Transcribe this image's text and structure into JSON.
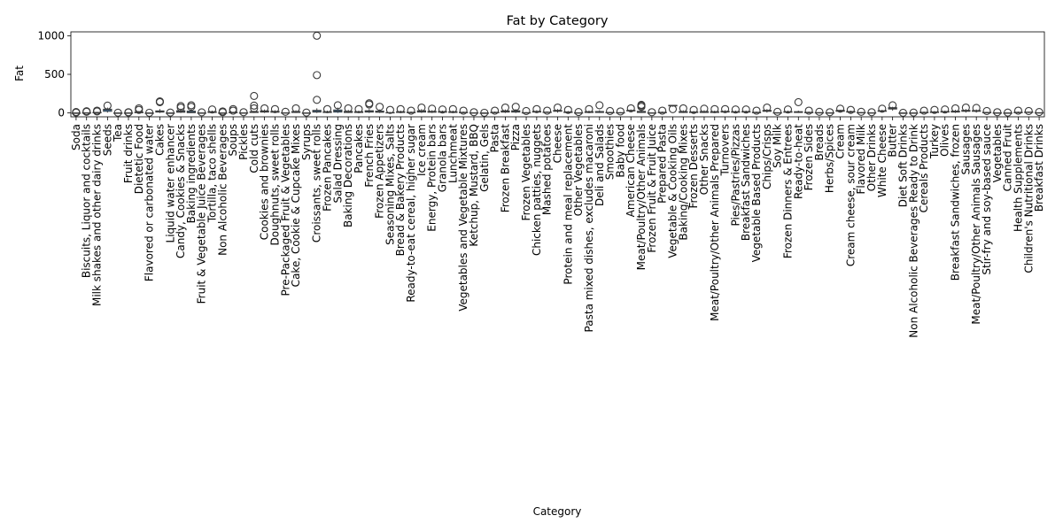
{
  "chart_data": {
    "type": "box",
    "title": "Fat by Category",
    "xlabel": "Category",
    "ylabel": "Fat",
    "ylim": [
      -50,
      1050
    ],
    "yticks": [
      0,
      500,
      1000
    ],
    "grid": false,
    "legend": "none",
    "colors": {
      "box_fill": "#3d7bb0",
      "stroke": "#3a3a3a",
      "outlier_edge": "#3a3a3a"
    },
    "categories": [
      "Soda",
      "Biscuits, Liquor and cocktails",
      "Milk shakes and other dairy drinks",
      "Seeds",
      "Tea",
      "Fruit drinks",
      "Dietetic Food",
      "Flavored or carbonated water",
      "Cakes",
      "Liquid water enhancer",
      "Candy, Cookies & Snacks",
      "Baking ingredients",
      "Fruit & Vegetable Juice Beverages",
      "Tortilla, taco shells",
      "Non Alcoholic Beverages",
      "Soups",
      "Pickles",
      "Cold cuts",
      "Cookies and brownies",
      "Doughnuts, sweet rolls",
      "Pre-Packaged Fruit & Vegetables",
      "Cake, Cookie & Cupcake Mixes",
      "Syrups",
      "Croissants, sweet rolls",
      "Frozen Pancakes",
      "Salad Dressing",
      "Baking Decorations",
      "Pancakes",
      "French Fries",
      "Frozen Appetizers",
      "Seasoning Mixes, Salts",
      "Bread & Bakery Products",
      "Ready-to-eat cereal, higher sugar",
      "Ice cream",
      "Energy, Protein bars",
      "Granola bars",
      "Lunchmeat",
      "Vegetables and Vegetable Mixtures",
      "Ketchup, Mustard, BBQ",
      "Gelatin, Gels",
      "Pasta",
      "Frozen Breakfast",
      "Pizza",
      "Frozen Vegetables",
      "Chicken patties, nuggets",
      "Mashed potatoes",
      "Cheese",
      "Protein and meal replacement",
      "Other Vegetables",
      "Pasta mixed dishes, excludes macaroni",
      "Deli and Salads",
      "Smoothies",
      "Baby food",
      "American Cheese",
      "Meat/Poultry/Other Animals",
      "Frozen Fruit & Fruit Juice",
      "Prepared Pasta",
      "Vegetable & Cooking Oils",
      "Baking/Cooking Mixes",
      "Frozen Desserts",
      "Other Snacks",
      "Meat/Poultry/Other Animals Prepared",
      "Turnovers",
      "Pies/Pastries/Pizzas",
      "Breakfast Sandwiches",
      "Vegetable Based Products",
      "Chips/Crisps",
      "Soy Milk",
      "Frozen Dinners & Entrees",
      "Ready-to-heat",
      "Frozen Sides",
      "Breads",
      "Herbs/Spices",
      "Cream",
      "Cream cheese, sour cream",
      "Flavored Milk",
      "Other Drinks",
      "White Cheese",
      "Butter",
      "Diet Soft Drinks",
      "Non Alcoholic Beverages Ready to Drink",
      "Cereals Products",
      "Turkey",
      "Olives",
      "Breakfast Sandwiches, frozen",
      "Sausages",
      "Meat/Poultry/Other Animals Sausages",
      "Stir-fry and soy-based sauce",
      "Vegetables",
      "Canned Fruit",
      "Health Supplements",
      "Children's Nutritional Drinks",
      "Breakfast Drinks"
    ],
    "boxes": [
      {
        "q1": 0,
        "median": 0,
        "q3": 0,
        "whisker_low": 0,
        "whisker_high": 2,
        "outliers": [
          5,
          8,
          12
        ]
      },
      {
        "q1": 0,
        "median": 1,
        "q3": 3,
        "whisker_low": 0,
        "whisker_high": 6,
        "outliers": [
          15,
          22
        ]
      },
      {
        "q1": 2,
        "median": 4,
        "q3": 8,
        "whisker_low": 0,
        "whisker_high": 14,
        "outliers": [
          20,
          30
        ]
      },
      {
        "q1": 20,
        "median": 40,
        "q3": 50,
        "whisker_low": 5,
        "whisker_high": 70,
        "outliers": [
          95
        ]
      },
      {
        "q1": 0,
        "median": 0,
        "q3": 0,
        "whisker_low": 0,
        "whisker_high": 1,
        "outliers": [
          4
        ]
      },
      {
        "q1": 0,
        "median": 0,
        "q3": 1,
        "whisker_low": 0,
        "whisker_high": 2,
        "outliers": [
          6,
          10
        ]
      },
      {
        "q1": 2,
        "median": 6,
        "q3": 12,
        "whisker_low": 0,
        "whisker_high": 25,
        "outliers": [
          40,
          60
        ]
      },
      {
        "q1": 0,
        "median": 0,
        "q3": 0,
        "whisker_low": 0,
        "whisker_high": 0,
        "outliers": [
          3
        ]
      },
      {
        "q1": 10,
        "median": 18,
        "q3": 28,
        "whisker_low": 0,
        "whisker_high": 50,
        "outliers": [
          145,
          150,
          140
        ]
      },
      {
        "q1": 0,
        "median": 0,
        "q3": 0,
        "whisker_low": 0,
        "whisker_high": 1,
        "outliers": [
          5
        ]
      },
      {
        "q1": 8,
        "median": 18,
        "q3": 30,
        "whisker_low": 0,
        "whisker_high": 55,
        "outliers": [
          70,
          90
        ]
      },
      {
        "q1": 2,
        "median": 10,
        "q3": 25,
        "whisker_low": 0,
        "whisker_high": 50,
        "outliers": [
          80,
          100
        ]
      },
      {
        "q1": 0,
        "median": 0,
        "q3": 1,
        "whisker_low": 0,
        "whisker_high": 3,
        "outliers": [
          8
        ]
      },
      {
        "q1": 5,
        "median": 10,
        "q3": 18,
        "whisker_low": 0,
        "whisker_high": 30,
        "outliers": [
          45
        ]
      },
      {
        "q1": 0,
        "median": 0,
        "q3": 1,
        "whisker_low": 0,
        "whisker_high": 2,
        "outliers": [
          10,
          20
        ]
      },
      {
        "q1": 2,
        "median": 4,
        "q3": 8,
        "whisker_low": 0,
        "whisker_high": 15,
        "outliers": [
          30,
          50
        ]
      },
      {
        "q1": 0,
        "median": 1,
        "q3": 2,
        "whisker_low": 0,
        "whisker_high": 4,
        "outliers": [
          10
        ]
      },
      {
        "q1": 5,
        "median": 10,
        "q3": 18,
        "whisker_low": 0,
        "whisker_high": 30,
        "outliers": [
          60,
          95,
          220
        ]
      },
      {
        "q1": 10,
        "median": 18,
        "q3": 28,
        "whisker_low": 0,
        "whisker_high": 45,
        "outliers": [
          60
        ]
      },
      {
        "q1": 8,
        "median": 15,
        "q3": 22,
        "whisker_low": 0,
        "whisker_high": 35,
        "outliers": [
          50
        ]
      },
      {
        "q1": 0,
        "median": 1,
        "q3": 3,
        "whisker_low": 0,
        "whisker_high": 6,
        "outliers": [
          15
        ]
      },
      {
        "q1": 5,
        "median": 10,
        "q3": 20,
        "whisker_low": 0,
        "whisker_high": 35,
        "outliers": [
          60
        ]
      },
      {
        "q1": 0,
        "median": 0,
        "q3": 1,
        "whisker_low": 0,
        "whisker_high": 2,
        "outliers": [
          5
        ]
      },
      {
        "q1": 10,
        "median": 20,
        "q3": 35,
        "whisker_low": 0,
        "whisker_high": 60,
        "outliers": [
          170,
          490,
          1000
        ]
      },
      {
        "q1": 5,
        "median": 10,
        "q3": 18,
        "whisker_low": 0,
        "whisker_high": 30,
        "outliers": [
          50
        ]
      },
      {
        "q1": 10,
        "median": 25,
        "q3": 40,
        "whisker_low": 0,
        "whisker_high": 70,
        "outliers": [
          100
        ]
      },
      {
        "q1": 5,
        "median": 12,
        "q3": 22,
        "whisker_low": 0,
        "whisker_high": 40,
        "outliers": [
          60
        ]
      },
      {
        "q1": 5,
        "median": 10,
        "q3": 18,
        "whisker_low": 0,
        "whisker_high": 30,
        "outliers": [
          50
        ]
      },
      {
        "q1": 10,
        "median": 20,
        "q3": 30,
        "whisker_low": 0,
        "whisker_high": 50,
        "outliers": [
          110,
          125
        ]
      },
      {
        "q1": 8,
        "median": 15,
        "q3": 25,
        "whisker_low": 0,
        "whisker_high": 45,
        "outliers": [
          80
        ]
      },
      {
        "q1": 0,
        "median": 2,
        "q3": 6,
        "whisker_low": 0,
        "whisker_high": 12,
        "outliers": [
          40
        ]
      },
      {
        "q1": 5,
        "median": 10,
        "q3": 18,
        "whisker_low": 0,
        "whisker_high": 30,
        "outliers": [
          50
        ]
      },
      {
        "q1": 2,
        "median": 5,
        "q3": 10,
        "whisker_low": 0,
        "whisker_high": 18,
        "outliers": [
          30
        ]
      },
      {
        "q1": 10,
        "median": 20,
        "q3": 30,
        "whisker_low": 0,
        "whisker_high": 50,
        "outliers": [
          70
        ]
      },
      {
        "q1": 8,
        "median": 14,
        "q3": 22,
        "whisker_low": 0,
        "whisker_high": 35,
        "outliers": [
          55
        ]
      },
      {
        "q1": 8,
        "median": 14,
        "q3": 20,
        "whisker_low": 0,
        "whisker_high": 30,
        "outliers": [
          45
        ]
      },
      {
        "q1": 5,
        "median": 10,
        "q3": 18,
        "whisker_low": 0,
        "whisker_high": 30,
        "outliers": [
          50
        ]
      },
      {
        "q1": 2,
        "median": 5,
        "q3": 10,
        "whisker_low": 0,
        "whisker_high": 18,
        "outliers": [
          30
        ]
      },
      {
        "q1": 0,
        "median": 1,
        "q3": 3,
        "whisker_low": 0,
        "whisker_high": 5,
        "outliers": [
          10
        ]
      },
      {
        "q1": 0,
        "median": 0,
        "q3": 0,
        "whisker_low": 0,
        "whisker_high": 1,
        "outliers": [
          3
        ]
      },
      {
        "q1": 2,
        "median": 5,
        "q3": 10,
        "whisker_low": 0,
        "whisker_high": 18,
        "outliers": [
          30
        ]
      },
      {
        "q1": 10,
        "median": 18,
        "q3": 28,
        "whisker_low": 0,
        "whisker_high": 45,
        "outliers": [
          70
        ]
      },
      {
        "q1": 10,
        "median": 20,
        "q3": 30,
        "whisker_low": 0,
        "whisker_high": 50,
        "outliers": [
          80
        ]
      },
      {
        "q1": 0,
        "median": 2,
        "q3": 5,
        "whisker_low": 0,
        "whisker_high": 10,
        "outliers": [
          25
        ]
      },
      {
        "q1": 10,
        "median": 15,
        "q3": 22,
        "whisker_low": 0,
        "whisker_high": 35,
        "outliers": [
          50
        ]
      },
      {
        "q1": 5,
        "median": 8,
        "q3": 12,
        "whisker_low": 0,
        "whisker_high": 20,
        "outliers": [
          30
        ]
      },
      {
        "q1": 20,
        "median": 28,
        "q3": 35,
        "whisker_low": 5,
        "whisker_high": 50,
        "outliers": [
          70
        ]
      },
      {
        "q1": 5,
        "median": 10,
        "q3": 15,
        "whisker_low": 0,
        "whisker_high": 25,
        "outliers": [
          40
        ]
      },
      {
        "q1": 0,
        "median": 1,
        "q3": 3,
        "whisker_low": 0,
        "whisker_high": 5,
        "outliers": [
          12
        ]
      },
      {
        "q1": 5,
        "median": 10,
        "q3": 18,
        "whisker_low": 0,
        "whisker_high": 30,
        "outliers": [
          50
        ]
      },
      {
        "q1": 5,
        "median": 10,
        "q3": 20,
        "whisker_low": 0,
        "whisker_high": 35,
        "outliers": [
          100
        ]
      },
      {
        "q1": 2,
        "median": 4,
        "q3": 8,
        "whisker_low": 0,
        "whisker_high": 14,
        "outliers": [
          25
        ]
      },
      {
        "q1": 0,
        "median": 2,
        "q3": 5,
        "whisker_low": 0,
        "whisker_high": 10,
        "outliers": [
          20
        ]
      },
      {
        "q1": 25,
        "median": 30,
        "q3": 35,
        "whisker_low": 15,
        "whisker_high": 45,
        "outliers": [
          60
        ]
      },
      {
        "q1": 5,
        "median": 12,
        "q3": 22,
        "whisker_low": 0,
        "whisker_high": 40,
        "outliers": [
          80,
          95,
          105
        ]
      },
      {
        "q1": 0,
        "median": 1,
        "q3": 2,
        "whisker_low": 0,
        "whisker_high": 4,
        "outliers": [
          10
        ]
      },
      {
        "q1": 2,
        "median": 5,
        "q3": 10,
        "whisker_low": 0,
        "whisker_high": 18,
        "outliers": [
          30
        ]
      },
      {
        "q1": 90,
        "median": 95,
        "q3": 100,
        "whisker_low": 80,
        "whisker_high": 100,
        "outliers": [
          50
        ]
      },
      {
        "q1": 5,
        "median": 10,
        "q3": 20,
        "whisker_low": 0,
        "whisker_high": 35,
        "outliers": [
          60
        ]
      },
      {
        "q1": 5,
        "median": 10,
        "q3": 15,
        "whisker_low": 0,
        "whisker_high": 25,
        "outliers": [
          40
        ]
      },
      {
        "q1": 5,
        "median": 10,
        "q3": 20,
        "whisker_low": 0,
        "whisker_high": 35,
        "outliers": [
          55
        ]
      },
      {
        "q1": 5,
        "median": 10,
        "q3": 18,
        "whisker_low": 0,
        "whisker_high": 30,
        "outliers": [
          50
        ]
      },
      {
        "q1": 10,
        "median": 15,
        "q3": 22,
        "whisker_low": 0,
        "whisker_high": 35,
        "outliers": [
          50
        ]
      },
      {
        "q1": 8,
        "median": 12,
        "q3": 18,
        "whisker_low": 0,
        "whisker_high": 30,
        "outliers": [
          45
        ]
      },
      {
        "q1": 10,
        "median": 15,
        "q3": 20,
        "whisker_low": 0,
        "whisker_high": 30,
        "outliers": [
          45
        ]
      },
      {
        "q1": 2,
        "median": 5,
        "q3": 10,
        "whisker_low": 0,
        "whisker_high": 18,
        "outliers": [
          30
        ]
      },
      {
        "q1": 20,
        "median": 28,
        "q3": 35,
        "whisker_low": 5,
        "whisker_high": 50,
        "outliers": [
          70
        ]
      },
      {
        "q1": 0,
        "median": 2,
        "q3": 4,
        "whisker_low": 0,
        "whisker_high": 8,
        "outliers": [
          15
        ]
      },
      {
        "q1": 8,
        "median": 12,
        "q3": 18,
        "whisker_low": 0,
        "whisker_high": 30,
        "outliers": [
          45
        ]
      },
      {
        "q1": 5,
        "median": 10,
        "q3": 18,
        "whisker_low": 0,
        "whisker_high": 30,
        "outliers": [
          140
        ]
      },
      {
        "q1": 2,
        "median": 5,
        "q3": 10,
        "whisker_low": 0,
        "whisker_high": 18,
        "outliers": [
          30
        ]
      },
      {
        "q1": 1,
        "median": 3,
        "q3": 5,
        "whisker_low": 0,
        "whisker_high": 8,
        "outliers": [
          15
        ]
      },
      {
        "q1": 0,
        "median": 1,
        "q3": 3,
        "whisker_low": 0,
        "whisker_high": 5,
        "outliers": [
          10
        ]
      },
      {
        "q1": 20,
        "median": 30,
        "q3": 35,
        "whisker_low": 10,
        "whisker_high": 40,
        "outliers": [
          55
        ]
      },
      {
        "q1": 10,
        "median": 15,
        "q3": 20,
        "whisker_low": 0,
        "whisker_high": 30,
        "outliers": [
          40
        ]
      },
      {
        "q1": 2,
        "median": 4,
        "q3": 6,
        "whisker_low": 0,
        "whisker_high": 10,
        "outliers": [
          15
        ]
      },
      {
        "q1": 0,
        "median": 1,
        "q3": 3,
        "whisker_low": 0,
        "whisker_high": 5,
        "outliers": [
          10
        ]
      },
      {
        "q1": 20,
        "median": 25,
        "q3": 30,
        "whisker_low": 10,
        "whisker_high": 40,
        "outliers": [
          55
        ]
      },
      {
        "q1": 50,
        "median": 60,
        "q3": 70,
        "whisker_low": 30,
        "whisker_high": 80,
        "outliers": [
          100
        ]
      },
      {
        "q1": 0,
        "median": 0,
        "q3": 0,
        "whisker_low": 0,
        "whisker_high": 0,
        "outliers": [
          2
        ]
      },
      {
        "q1": 0,
        "median": 0,
        "q3": 1,
        "whisker_low": 0,
        "whisker_high": 2,
        "outliers": [
          5
        ]
      },
      {
        "q1": 2,
        "median": 5,
        "q3": 10,
        "whisker_low": 0,
        "whisker_high": 18,
        "outliers": [
          30
        ]
      },
      {
        "q1": 5,
        "median": 10,
        "q3": 15,
        "whisker_low": 0,
        "whisker_high": 25,
        "outliers": [
          40
        ]
      },
      {
        "q1": 10,
        "median": 15,
        "q3": 20,
        "whisker_low": 0,
        "whisker_high": 30,
        "outliers": [
          45
        ]
      },
      {
        "q1": 10,
        "median": 15,
        "q3": 25,
        "whisker_low": 0,
        "whisker_high": 40,
        "outliers": [
          60
        ]
      },
      {
        "q1": 20,
        "median": 28,
        "q3": 35,
        "whisker_low": 5,
        "whisker_high": 50,
        "outliers": [
          70
        ]
      },
      {
        "q1": 20,
        "median": 25,
        "q3": 32,
        "whisker_low": 5,
        "whisker_high": 45,
        "outliers": [
          65
        ]
      },
      {
        "q1": 2,
        "median": 4,
        "q3": 8,
        "whisker_low": 0,
        "whisker_high": 14,
        "outliers": [
          25
        ]
      },
      {
        "q1": 0,
        "median": 1,
        "q3": 2,
        "whisker_low": 0,
        "whisker_high": 4,
        "outliers": [
          10
        ]
      },
      {
        "q1": 0,
        "median": 0,
        "q3": 1,
        "whisker_low": 0,
        "whisker_high": 2,
        "outliers": [
          5
        ]
      },
      {
        "q1": 2,
        "median": 5,
        "q3": 10,
        "whisker_low": 0,
        "whisker_high": 18,
        "outliers": [
          30
        ]
      },
      {
        "q1": 5,
        "median": 8,
        "q3": 12,
        "whisker_low": 0,
        "whisker_high": 18,
        "outliers": [
          25
        ]
      },
      {
        "q1": 0,
        "median": 2,
        "q3": 4,
        "whisker_low": 0,
        "whisker_high": 8,
        "outliers": [
          12
        ]
      }
    ]
  }
}
